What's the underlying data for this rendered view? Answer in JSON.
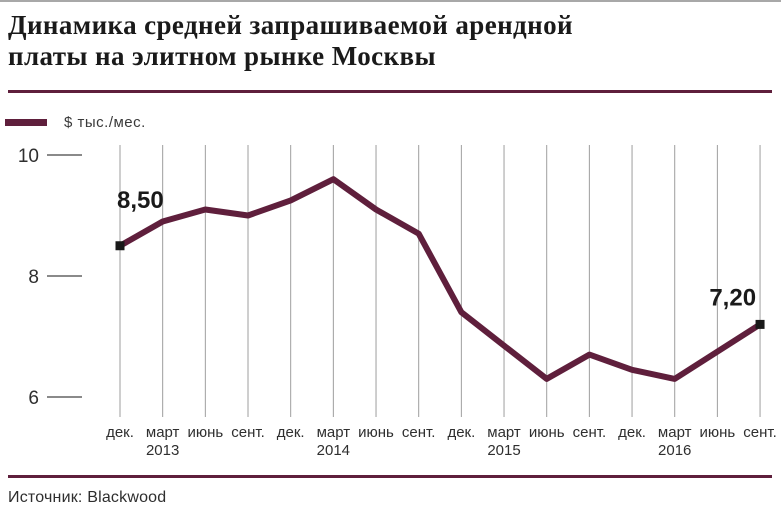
{
  "header": {
    "title_lines": [
      "Динамика средней запрашиваемой арендной",
      "платы на элитном рынке Москвы"
    ]
  },
  "legend": {
    "label": "$ тыс./мес."
  },
  "chart_data": {
    "type": "line",
    "title": "Динамика средней запрашиваемой арендной платы на элитном рынке Москвы",
    "ylabel": "$ тыс./мес.",
    "xlabel": "",
    "categories": [
      "дек.",
      "март",
      "июнь",
      "сент.",
      "дек.",
      "март",
      "июнь",
      "сент.",
      "дек.",
      "март",
      "июнь",
      "сент.",
      "дек.",
      "март",
      "июнь",
      "сент."
    ],
    "year_markers": [
      {
        "index": 1,
        "label": "2013"
      },
      {
        "index": 5,
        "label": "2014"
      },
      {
        "index": 9,
        "label": "2015"
      },
      {
        "index": 13,
        "label": "2016"
      }
    ],
    "series": [
      {
        "name": "$ тыс./мес.",
        "values": [
          8.5,
          8.9,
          9.1,
          9.0,
          9.25,
          9.6,
          9.1,
          8.7,
          7.4,
          6.85,
          6.3,
          6.7,
          6.45,
          6.3,
          6.75,
          7.2
        ]
      }
    ],
    "point_labels": [
      {
        "index": 0,
        "label": "8,50"
      },
      {
        "index": 15,
        "label": "7,20"
      }
    ],
    "y_ticks": [
      10,
      8,
      6
    ],
    "ylim": [
      5.6,
      10.2
    ],
    "grid": "vertical-only",
    "legend_position": "top-left",
    "source": "Blackwood"
  },
  "footer": {
    "source": "Источник: Blackwood"
  },
  "colors": {
    "accent": "#5f1f3c",
    "marker": "#191919",
    "grid": "#9e9e9e",
    "tick": "#8a8a8a",
    "axis_text": "#2f2f2f",
    "label_text": "#1a1a1a"
  }
}
